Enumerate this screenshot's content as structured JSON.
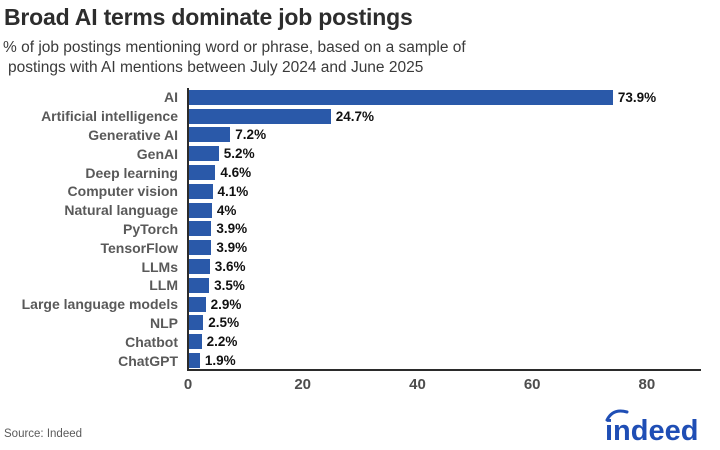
{
  "header": {
    "title": "Broad AI terms dominate job postings",
    "subtitle_line1": "% of job postings mentioning word or phrase, based on a sample of",
    "subtitle_line2": "postings with AI mentions between July 2024 and June 2025"
  },
  "chart_data": {
    "type": "bar",
    "orientation": "horizontal",
    "title": "Broad AI terms dominate job postings",
    "subtitle": "% of job postings mentioning word or phrase, based on a sample of postings with AI mentions between July 2024 and June 2025",
    "categories": [
      "AI",
      "Artificial intelligence",
      "Generative AI",
      "GenAI",
      "Deep learning",
      "Computer vision",
      "Natural language",
      "PyTorch",
      "TensorFlow",
      "LLMs",
      "LLM",
      "Large language models",
      "NLP",
      "Chatbot",
      "ChatGPT"
    ],
    "values": [
      73.9,
      24.7,
      7.2,
      5.2,
      4.6,
      4.1,
      4,
      3.9,
      3.9,
      3.6,
      3.5,
      2.9,
      2.5,
      2.2,
      1.9
    ],
    "value_labels": [
      "73.9%",
      "24.7%",
      "7.2%",
      "5.2%",
      "4.6%",
      "4.1%",
      "4%",
      "3.9%",
      "3.9%",
      "3.6%",
      "3.5%",
      "2.9%",
      "2.5%",
      "2.2%",
      "1.9%"
    ],
    "xlabel": "",
    "ylabel": "",
    "xlim": [
      0,
      89.6
    ],
    "xticks": [
      0,
      20,
      40,
      60,
      80
    ],
    "grid": false,
    "legend": false,
    "bar_color": "#2a59a9",
    "axis_color": "#2b2b2b"
  },
  "footer": {
    "source": "Source: Indeed",
    "logo_text": "indeed",
    "logo_color": "#1f4eb5"
  }
}
